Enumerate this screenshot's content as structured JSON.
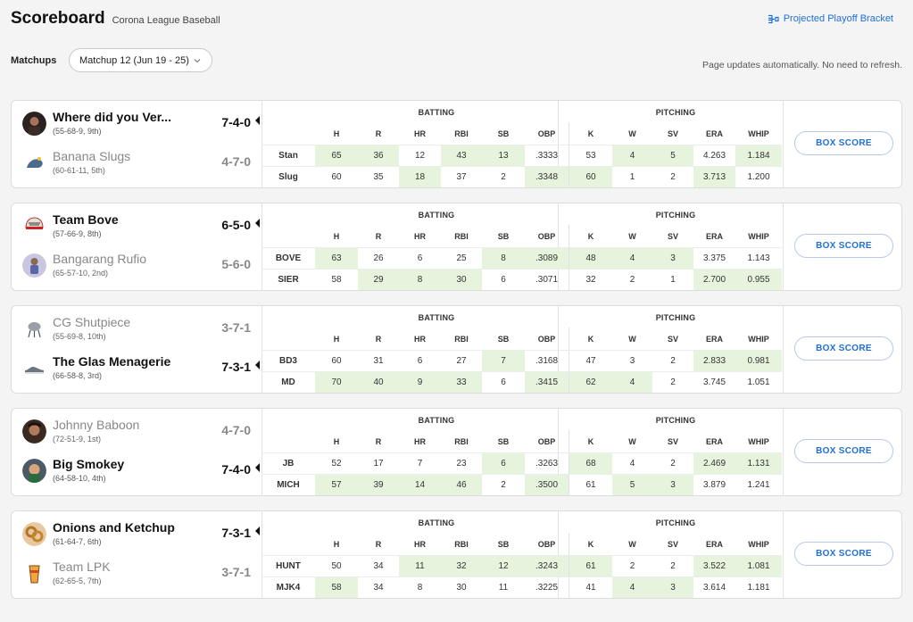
{
  "header": {
    "title": "Scoreboard",
    "league": "Corona League Baseball",
    "bracket_link": "Projected Playoff Bracket"
  },
  "matchups": {
    "label": "Matchups",
    "selected": "Matchup 12 (Jun 19 - 25)"
  },
  "auto_refresh_note": "Page updates automatically. No need to refresh.",
  "section_titles": {
    "batting": "BATTING",
    "pitching": "PITCHING"
  },
  "stat_headers": [
    "H",
    "R",
    "HR",
    "RBI",
    "SB",
    "OBP",
    "K",
    "W",
    "SV",
    "ERA",
    "WHIP"
  ],
  "box_score_label": "BOX SCORE",
  "games": [
    {
      "teams": [
        {
          "name": "Where did you Ver...",
          "sub": "(55-68-9, 9th)",
          "record": "7-4-0",
          "winner": true,
          "avatar": "portrait-avatar"
        },
        {
          "name": "Banana Slugs",
          "sub": "(60-61-11, 5th)",
          "record": "4-7-0",
          "winner": false,
          "avatar": "slug-avatar"
        }
      ],
      "rows": [
        {
          "abbr": "Stan",
          "values": [
            "65",
            "36",
            "12",
            "43",
            "13",
            ".3333",
            "53",
            "4",
            "5",
            "4.263",
            "1.184"
          ],
          "hl": [
            1,
            1,
            0,
            1,
            1,
            0,
            0,
            1,
            1,
            0,
            1
          ]
        },
        {
          "abbr": "Slug",
          "values": [
            "60",
            "35",
            "18",
            "37",
            "2",
            ".3348",
            "60",
            "1",
            "2",
            "3.713",
            "1.200"
          ],
          "hl": [
            0,
            0,
            1,
            0,
            0,
            1,
            1,
            0,
            0,
            1,
            0
          ]
        }
      ]
    },
    {
      "teams": [
        {
          "name": "Team Bove",
          "sub": "(57-66-9, 8th)",
          "record": "6-5-0",
          "winner": true,
          "avatar": "cap-avatar"
        },
        {
          "name": "Bangarang Rufio",
          "sub": "(65-57-10, 2nd)",
          "record": "5-6-0",
          "winner": false,
          "avatar": "player-avatar"
        }
      ],
      "rows": [
        {
          "abbr": "BOVE",
          "values": [
            "63",
            "26",
            "6",
            "25",
            "8",
            ".3089",
            "48",
            "4",
            "3",
            "3.375",
            "1.143"
          ],
          "hl": [
            1,
            0,
            0,
            0,
            1,
            1,
            1,
            1,
            1,
            0,
            0
          ]
        },
        {
          "abbr": "SIER",
          "values": [
            "58",
            "29",
            "8",
            "30",
            "6",
            ".3071",
            "32",
            "2",
            "1",
            "2.700",
            "0.955"
          ],
          "hl": [
            0,
            1,
            1,
            1,
            0,
            0,
            0,
            0,
            0,
            1,
            1
          ]
        }
      ]
    },
    {
      "teams": [
        {
          "name": "CG Shutpiece",
          "sub": "(55-69-8, 10th)",
          "record": "3-7-1",
          "winner": false,
          "avatar": "grill-avatar"
        },
        {
          "name": "The Glas Menagerie",
          "sub": "(66-58-8, 3rd)",
          "record": "7-3-1",
          "winner": true,
          "avatar": "shoe-avatar"
        }
      ],
      "rows": [
        {
          "abbr": "BD3",
          "values": [
            "60",
            "31",
            "6",
            "27",
            "7",
            ".3168",
            "47",
            "3",
            "2",
            "2.833",
            "0.981"
          ],
          "hl": [
            0,
            0,
            0,
            0,
            1,
            0,
            0,
            0,
            0,
            1,
            1
          ]
        },
        {
          "abbr": "MD",
          "values": [
            "70",
            "40",
            "9",
            "33",
            "6",
            ".3415",
            "62",
            "4",
            "2",
            "3.745",
            "1.051"
          ],
          "hl": [
            1,
            1,
            1,
            1,
            0,
            1,
            1,
            1,
            0,
            0,
            0
          ]
        }
      ]
    },
    {
      "teams": [
        {
          "name": "Johnny Baboon",
          "sub": "(72-51-9, 1st)",
          "record": "4-7-0",
          "winner": false,
          "avatar": "portrait2-avatar"
        },
        {
          "name": "Big Smokey",
          "sub": "(64-58-10, 4th)",
          "record": "7-4-0",
          "winner": true,
          "avatar": "bigsmokey-avatar"
        }
      ],
      "rows": [
        {
          "abbr": "JB",
          "values": [
            "52",
            "17",
            "7",
            "23",
            "6",
            ".3263",
            "68",
            "4",
            "2",
            "2.469",
            "1.131"
          ],
          "hl": [
            0,
            0,
            0,
            0,
            1,
            0,
            1,
            0,
            0,
            1,
            1
          ]
        },
        {
          "abbr": "MICH",
          "values": [
            "57",
            "39",
            "14",
            "46",
            "2",
            ".3500",
            "61",
            "5",
            "3",
            "3.879",
            "1.241"
          ],
          "hl": [
            1,
            1,
            1,
            1,
            0,
            1,
            0,
            1,
            1,
            0,
            0
          ]
        }
      ]
    },
    {
      "teams": [
        {
          "name": "Onions and Ketchup",
          "sub": "(61-64-7, 6th)",
          "record": "7-3-1",
          "winner": true,
          "avatar": "onion-rings-avatar"
        },
        {
          "name": "Team LPK",
          "sub": "(62-65-5, 7th)",
          "record": "3-7-1",
          "winner": false,
          "avatar": "lpk-avatar"
        }
      ],
      "rows": [
        {
          "abbr": "HUNT",
          "values": [
            "50",
            "34",
            "11",
            "32",
            "12",
            ".3243",
            "61",
            "2",
            "2",
            "3.522",
            "1.081"
          ],
          "hl": [
            0,
            0,
            1,
            1,
            1,
            1,
            1,
            0,
            0,
            1,
            1
          ]
        },
        {
          "abbr": "MJK4",
          "values": [
            "58",
            "34",
            "8",
            "30",
            "11",
            ".3225",
            "41",
            "4",
            "3",
            "3.614",
            "1.181"
          ],
          "hl": [
            1,
            0,
            0,
            0,
            0,
            0,
            0,
            1,
            1,
            0,
            0
          ]
        }
      ]
    }
  ]
}
